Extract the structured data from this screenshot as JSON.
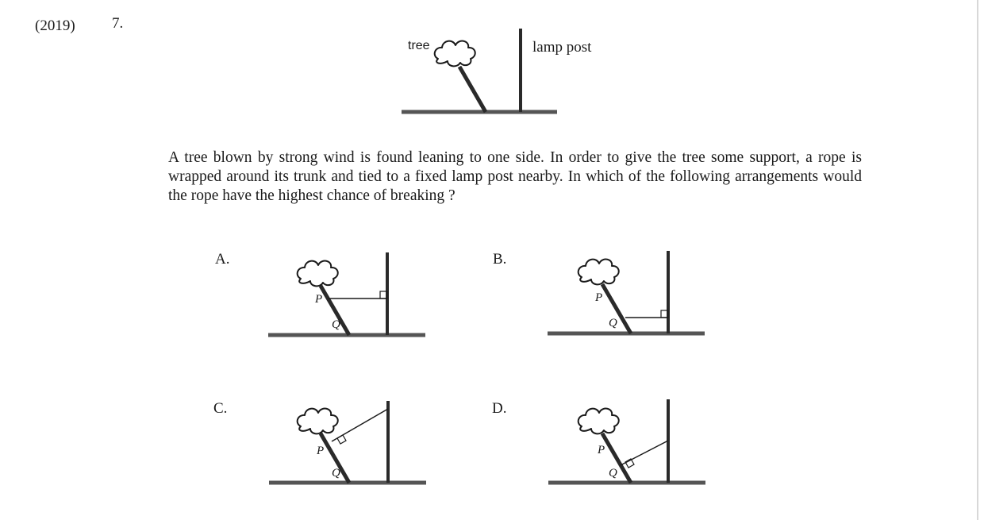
{
  "header": {
    "year": "(2019)",
    "question_number": "7."
  },
  "figure": {
    "tree_label": "tree",
    "lamp_label": "lamp post"
  },
  "question_text": "A tree blown by strong wind is found leaning to one side. In order to give the tree some support, a rope is wrapped around its trunk and tied to a fixed lamp post nearby. In which of the following arrangements would the rope have the highest chance of breaking ?",
  "options": [
    {
      "letter": "A.",
      "point_top": "P",
      "point_bottom": "Q"
    },
    {
      "letter": "B.",
      "point_top": "P",
      "point_bottom": "Q"
    },
    {
      "letter": "C.",
      "point_top": "P",
      "point_bottom": "Q"
    },
    {
      "letter": "D.",
      "point_top": "P",
      "point_bottom": "Q"
    }
  ],
  "colors": {
    "ink": "#1a1a1a",
    "ground": "#555555",
    "trunk": "#2a2a2a"
  }
}
